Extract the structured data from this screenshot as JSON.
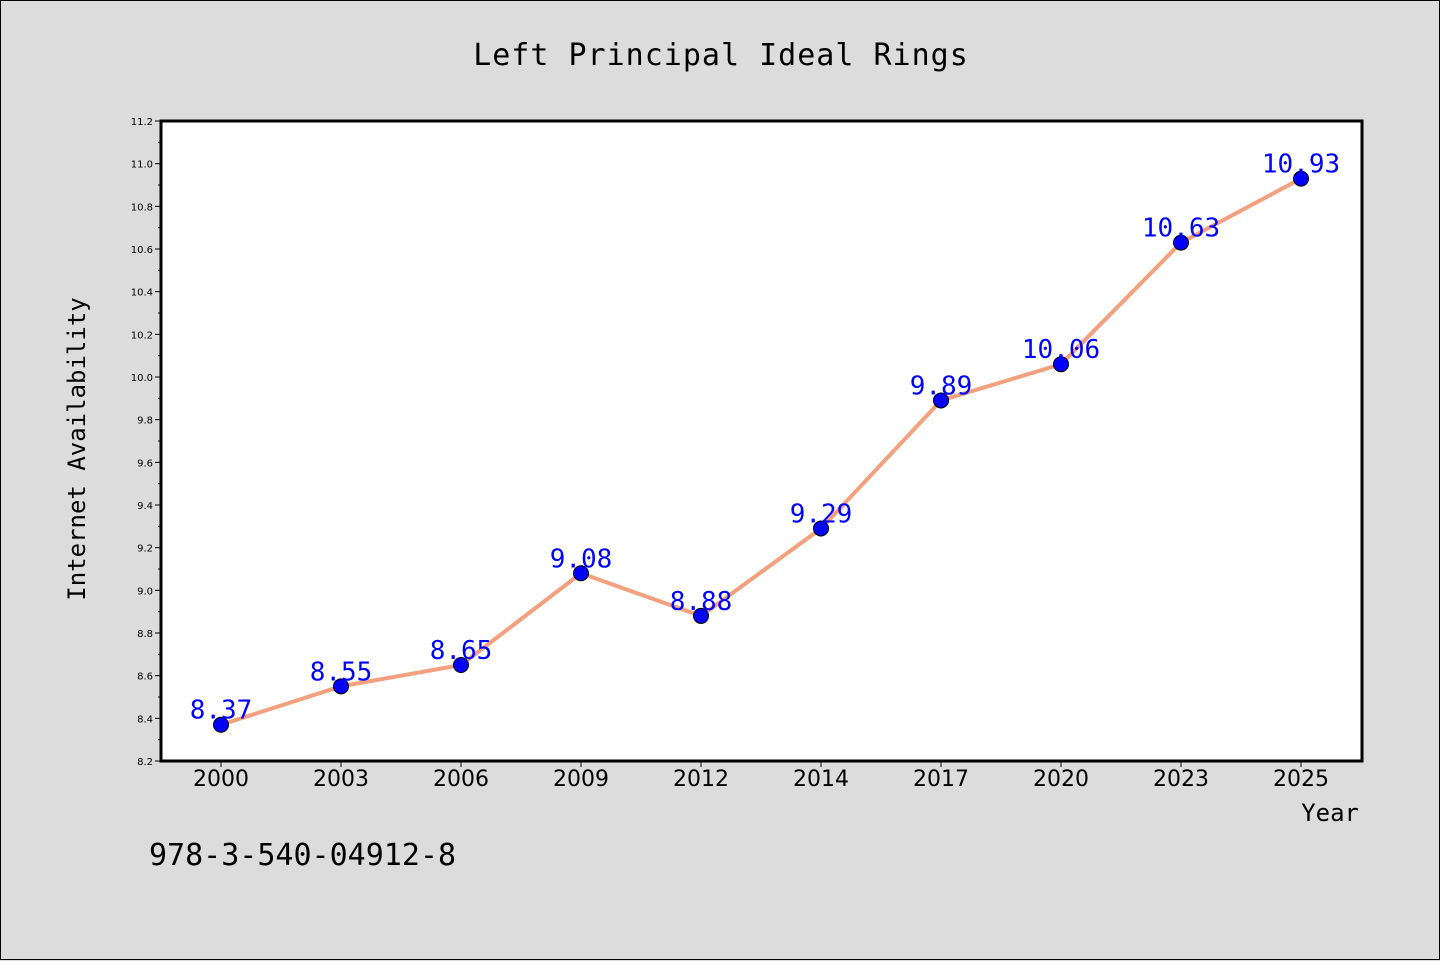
{
  "chart_data": {
    "type": "line",
    "title": "Left Principal Ideal Rings",
    "xlabel": "Year",
    "ylabel": "Internet Availability",
    "categories": [
      "2000",
      "2003",
      "2006",
      "2009",
      "2012",
      "2014",
      "2017",
      "2020",
      "2023",
      "2025"
    ],
    "series": [
      {
        "values": [
          8.37,
          8.55,
          8.65,
          9.08,
          8.88,
          9.29,
          9.89,
          10.06,
          10.63,
          10.93
        ],
        "data_labels": [
          "8.37",
          "8.55",
          "8.65",
          "9.08",
          "8.88",
          "9.29",
          "9.89",
          "10.06",
          "10.63",
          "10.93"
        ],
        "line_color": "#f4a07e",
        "marker_color": "#0000ff"
      }
    ],
    "ylim": [
      8.2,
      11.2
    ],
    "yticks": [
      "8.2",
      "8.4",
      "8.6",
      "8.8",
      "9.0",
      "9.2",
      "9.4",
      "9.6",
      "9.8",
      "10.0",
      "10.2",
      "10.4",
      "10.6",
      "10.8",
      "11.0",
      "11.2"
    ],
    "grid": false,
    "legend": "none",
    "colors": {
      "background": "#dcdcdc",
      "plot_background": "#ffffff"
    }
  },
  "footer": {
    "identifier": "978-3-540-04912-8"
  }
}
